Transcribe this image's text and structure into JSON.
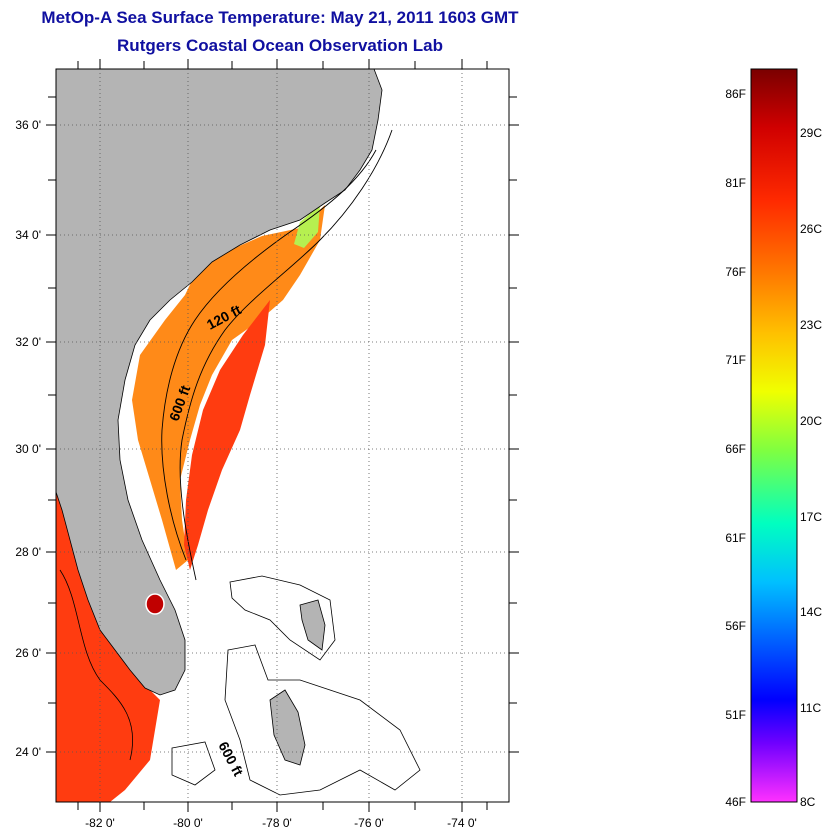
{
  "header": {
    "title": "MetOp-A Sea Surface Temperature:  May 21, 2011 1603 GMT",
    "subtitle": "Rutgers Coastal Ocean Observation Lab"
  },
  "map": {
    "lat_range": [
      23,
      37.2
    ],
    "lon_range": [
      -83,
      -73.2
    ],
    "lat_ticks": [
      "36 0'",
      "34 0'",
      "32 0'",
      "30 0'",
      "28 0'",
      "26 0'",
      "24 0'"
    ],
    "lon_ticks": [
      "-82 0'",
      "-80 0'",
      "-78 0'",
      "-76 0'",
      "-74 0'"
    ],
    "isobath_labels": [
      "120 ft",
      "600 ft",
      "600 ft"
    ],
    "colors": {
      "land": "#b4b4b4",
      "warm": "#ff3c10",
      "mid": "#ff8a18",
      "cool": "#b6f050"
    }
  },
  "colorbar": {
    "fahrenheit": [
      "86F",
      "81F",
      "76F",
      "71F",
      "66F",
      "61F",
      "56F",
      "51F",
      "46F"
    ],
    "celsius": [
      "29C",
      "26C",
      "23C",
      "20C",
      "17C",
      "14C",
      "11C",
      "8C"
    ],
    "gradient": [
      "#7a0000",
      "#d00000",
      "#ff2a00",
      "#ff7a00",
      "#ffc000",
      "#f0ff00",
      "#80ff40",
      "#00ffc0",
      "#00c0ff",
      "#0060ff",
      "#0000ff",
      "#7000ff",
      "#ff30ff"
    ]
  }
}
